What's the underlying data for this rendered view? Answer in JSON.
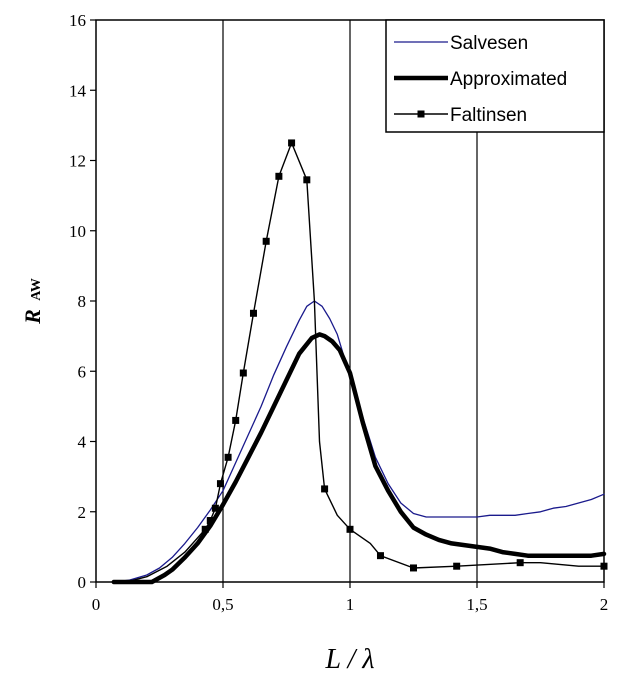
{
  "chart_data": {
    "type": "line",
    "xlabel": "L / λ",
    "ylabel": {
      "main": "R",
      "sub": "AW"
    },
    "xlim": [
      0,
      2
    ],
    "ylim": [
      0,
      16
    ],
    "xticks": [
      0,
      0.5,
      1,
      1.5,
      2
    ],
    "xtick_labels": [
      "0",
      "0,5",
      "1",
      "1,5",
      "2"
    ],
    "yticks": [
      0,
      2,
      4,
      6,
      8,
      10,
      12,
      14,
      16
    ],
    "ytick_labels": [
      "0",
      "2",
      "4",
      "6",
      "8",
      "10",
      "12",
      "14",
      "16"
    ],
    "grid": {
      "x": true,
      "y": false
    },
    "legend": {
      "position": "top-right"
    },
    "series": [
      {
        "name": "Salvesen",
        "color": "#1a1a8c",
        "style": "thin",
        "markers": false,
        "x": [
          0.07,
          0.13,
          0.2,
          0.25,
          0.3,
          0.35,
          0.4,
          0.45,
          0.5,
          0.55,
          0.6,
          0.65,
          0.7,
          0.75,
          0.8,
          0.83,
          0.86,
          0.89,
          0.92,
          0.95,
          1.0,
          1.05,
          1.1,
          1.15,
          1.2,
          1.25,
          1.3,
          1.35,
          1.4,
          1.45,
          1.5,
          1.55,
          1.6,
          1.65,
          1.7,
          1.75,
          1.8,
          1.85,
          1.9,
          1.95,
          2.0
        ],
        "y": [
          0,
          0.05,
          0.2,
          0.4,
          0.7,
          1.1,
          1.55,
          2.05,
          2.6,
          3.4,
          4.2,
          5.0,
          5.9,
          6.7,
          7.45,
          7.85,
          8.0,
          7.85,
          7.5,
          7.05,
          5.85,
          4.7,
          3.55,
          2.8,
          2.25,
          1.95,
          1.85,
          1.85,
          1.85,
          1.85,
          1.85,
          1.9,
          1.9,
          1.9,
          1.95,
          2.0,
          2.1,
          2.15,
          2.25,
          2.35,
          2.5
        ]
      },
      {
        "name": "Approximated",
        "color": "#000000",
        "style": "thick",
        "markers": false,
        "x": [
          0.07,
          0.15,
          0.22,
          0.27,
          0.3,
          0.35,
          0.4,
          0.45,
          0.5,
          0.55,
          0.6,
          0.65,
          0.7,
          0.75,
          0.8,
          0.85,
          0.88,
          0.9,
          0.93,
          0.96,
          1.0,
          1.05,
          1.1,
          1.15,
          1.2,
          1.25,
          1.3,
          1.35,
          1.4,
          1.45,
          1.5,
          1.55,
          1.6,
          1.65,
          1.7,
          1.75,
          1.8,
          1.85,
          1.9,
          1.95,
          2.0
        ],
        "y": [
          0,
          0,
          0,
          0.2,
          0.35,
          0.7,
          1.1,
          1.6,
          2.2,
          2.85,
          3.55,
          4.25,
          5.0,
          5.75,
          6.5,
          6.95,
          7.05,
          7.0,
          6.85,
          6.6,
          5.95,
          4.55,
          3.3,
          2.6,
          2.0,
          1.55,
          1.35,
          1.2,
          1.1,
          1.05,
          1.0,
          0.95,
          0.85,
          0.8,
          0.75,
          0.75,
          0.75,
          0.75,
          0.75,
          0.75,
          0.8
        ]
      },
      {
        "name": "Faltinsen",
        "color": "#000000",
        "style": "thin",
        "markers": true,
        "x": [
          0.07,
          0.12,
          0.2,
          0.28,
          0.35,
          0.43,
          0.45,
          0.47,
          0.49,
          0.52,
          0.55,
          0.58,
          0.62,
          0.67,
          0.72,
          0.77,
          0.83,
          0.86,
          0.88,
          0.9,
          0.95,
          1.0,
          1.08,
          1.12,
          1.25,
          1.42,
          1.67,
          1.75,
          1.9,
          2.0
        ],
        "y": [
          0,
          0,
          0.15,
          0.45,
          0.85,
          1.5,
          1.75,
          2.1,
          2.8,
          3.55,
          4.6,
          5.95,
          7.65,
          9.7,
          11.55,
          12.5,
          11.45,
          8.0,
          4.0,
          2.65,
          1.9,
          1.5,
          1.1,
          0.75,
          0.4,
          0.45,
          0.55,
          0.55,
          0.45,
          0.45
        ],
        "marker_x": [
          0.43,
          0.45,
          0.47,
          0.49,
          0.52,
          0.55,
          0.58,
          0.62,
          0.67,
          0.72,
          0.77,
          0.83,
          0.9,
          1.0,
          1.12,
          1.25,
          1.42,
          1.67,
          2.0
        ],
        "marker_y": [
          1.5,
          1.75,
          2.1,
          2.8,
          3.55,
          4.6,
          5.95,
          7.65,
          9.7,
          11.55,
          12.5,
          11.45,
          2.65,
          1.5,
          0.75,
          0.4,
          0.45,
          0.55,
          0.45
        ]
      }
    ]
  }
}
